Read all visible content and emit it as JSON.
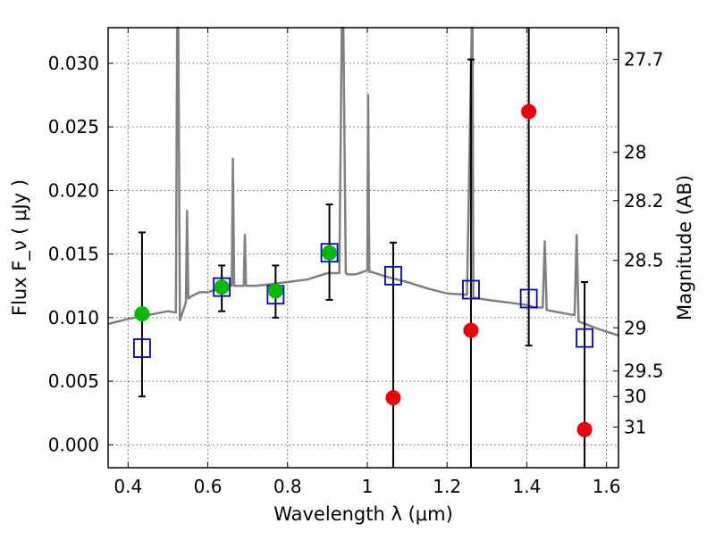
{
  "chart_data": {
    "type": "scatter",
    "xlabel": "Wavelength  λ (μm)",
    "ylabel": "Flux  F_ν  ( μJy )",
    "ylabel_right": "Magnitude (AB)",
    "xlim": [
      0.35,
      1.63
    ],
    "ylim": [
      -0.0018,
      0.0328
    ],
    "x_ticks": [
      0.4,
      0.6,
      0.8,
      1.0,
      1.2,
      1.4,
      1.6
    ],
    "x_tick_labels": [
      "0.4",
      "0.6",
      "0.8",
      "1",
      "1.2",
      "1.4",
      "1.6"
    ],
    "y_ticks": [
      0.0,
      0.005,
      0.01,
      0.015,
      0.02,
      0.025,
      0.03
    ],
    "y_tick_labels": [
      "0.000",
      "0.005",
      "0.010",
      "0.015",
      "0.020",
      "0.025",
      "0.030"
    ],
    "right_ticks": [
      {
        "label": "27.7",
        "flux": 0.0303
      },
      {
        "label": "28",
        "flux": 0.023
      },
      {
        "label": "28.2",
        "flux": 0.0192
      },
      {
        "label": "28.5",
        "flux": 0.0145
      },
      {
        "label": "29",
        "flux": 0.0092
      },
      {
        "label": "29.5",
        "flux": 0.0058
      },
      {
        "label": "30",
        "flux": 0.0038
      },
      {
        "label": "31",
        "flux": 0.0014
      }
    ],
    "grid": true,
    "series": [
      {
        "kind": "sed_model_spectrum",
        "color": "#808080",
        "x": [
          0.35,
          0.4,
          0.45,
          0.5,
          0.52,
          0.523,
          0.526,
          0.53,
          0.545,
          0.548,
          0.551,
          0.56,
          0.58,
          0.6,
          0.65,
          0.66,
          0.663,
          0.666,
          0.69,
          0.693,
          0.696,
          0.72,
          0.75,
          0.8,
          0.85,
          0.9,
          0.93,
          0.936,
          0.94,
          0.946,
          0.95,
          0.97,
          1.0,
          1.002,
          1.005,
          1.01,
          1.05,
          1.1,
          1.15,
          1.2,
          1.25,
          1.262,
          1.264,
          1.266,
          1.28,
          1.3,
          1.35,
          1.4,
          1.42,
          1.44,
          1.445,
          1.45,
          1.5,
          1.52,
          1.525,
          1.53,
          1.58,
          1.63
        ],
        "y": [
          0.0095,
          0.0099,
          0.0102,
          0.0105,
          0.0104,
          0.0328,
          0.0328,
          0.0098,
          0.0112,
          0.0184,
          0.0115,
          0.0117,
          0.012,
          0.012,
          0.0125,
          0.0125,
          0.0225,
          0.0125,
          0.0125,
          0.0165,
          0.0125,
          0.0125,
          0.0126,
          0.0128,
          0.013,
          0.0135,
          0.0135,
          0.0328,
          0.0328,
          0.0135,
          0.0134,
          0.0134,
          0.0137,
          0.0275,
          0.0136,
          0.0136,
          0.0132,
          0.0128,
          0.0123,
          0.0119,
          0.0118,
          0.0328,
          0.0328,
          0.0116,
          0.0115,
          0.0114,
          0.0112,
          0.011,
          0.0108,
          0.0108,
          0.016,
          0.0106,
          0.0103,
          0.0102,
          0.0165,
          0.0097,
          0.0091,
          0.0086
        ]
      },
      {
        "kind": "model_photometry",
        "color": "#0000cc",
        "marker": "open-square",
        "x": [
          0.435,
          0.635,
          0.77,
          0.905,
          1.065,
          1.26,
          1.405,
          1.545
        ],
        "y": [
          0.0076,
          0.0124,
          0.0118,
          0.0151,
          0.0133,
          0.0122,
          0.0115,
          0.0084
        ]
      },
      {
        "kind": "observed_flux",
        "color": "#00bb00",
        "marker": "filled-circle",
        "x": [
          0.435,
          0.635,
          0.77,
          0.905
        ],
        "y": [
          0.0103,
          0.0124,
          0.0121,
          0.0151
        ],
        "err_low": [
          0.0038,
          0.0105,
          0.01,
          0.0114
        ],
        "err_high": [
          0.0167,
          0.0141,
          0.0141,
          0.0189
        ]
      },
      {
        "kind": "observed_flux",
        "color": "#ee0000",
        "marker": "filled-circle",
        "x": [
          1.065,
          1.26,
          1.405,
          1.545
        ],
        "y": [
          0.0037,
          0.009,
          0.0262,
          0.0012
        ],
        "err_low": [
          -0.0018,
          -0.0018,
          0.0078,
          -0.0018
        ],
        "err_high": [
          0.0159,
          0.0303,
          0.0328,
          0.0128
        ]
      }
    ]
  }
}
